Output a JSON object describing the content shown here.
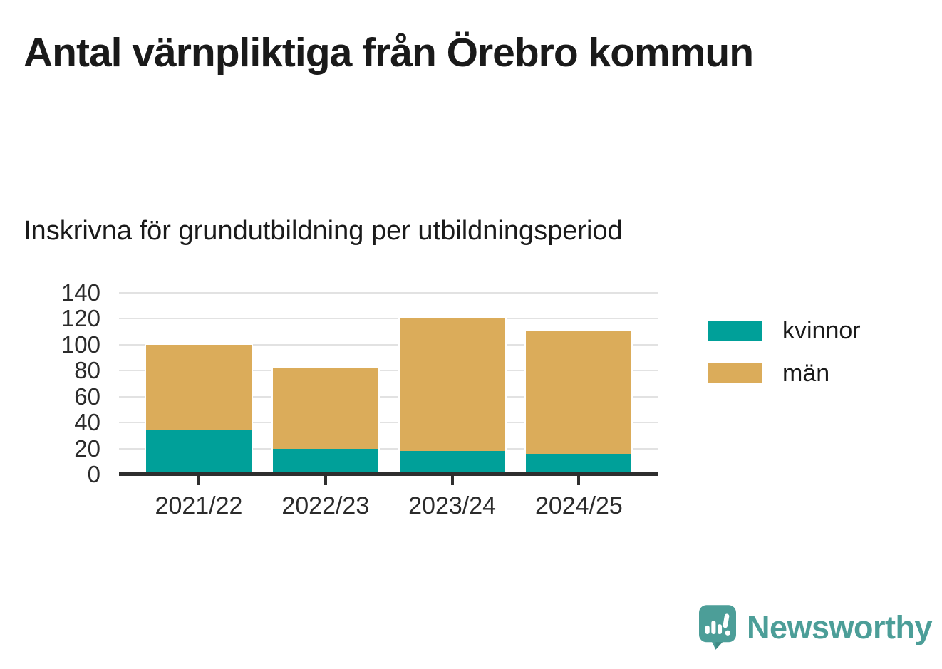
{
  "title": "Antal värnpliktiga från Örebro kommun",
  "subtitle": "Inskrivna för grundutbildning per utbildningsperiod",
  "chart_data": {
    "type": "bar",
    "stacked": true,
    "categories": [
      "2021/22",
      "2022/23",
      "2023/24",
      "2024/25"
    ],
    "series": [
      {
        "name": "kvinnor",
        "color": "#00a099",
        "values": [
          34,
          20,
          18,
          16
        ]
      },
      {
        "name": "män",
        "color": "#dbac5a",
        "values": [
          66,
          62,
          102,
          95
        ]
      }
    ],
    "totals": [
      100,
      82,
      120,
      111
    ],
    "xlabel": "",
    "ylabel": "",
    "ylim": [
      0,
      140
    ],
    "yticks": [
      0,
      20,
      40,
      60,
      80,
      100,
      120,
      140
    ],
    "grid": true,
    "legend_position": "right"
  },
  "colors": {
    "kvinnor": "#00a099",
    "man": "#dbac5a",
    "gridline": "#e2e2e2",
    "axis": "#2e2e2e",
    "text": "#1a1a1a",
    "brand_teal": "#4c9e98"
  },
  "branding": {
    "name": "Newsworthy",
    "icon": "newsworthy-logo"
  }
}
